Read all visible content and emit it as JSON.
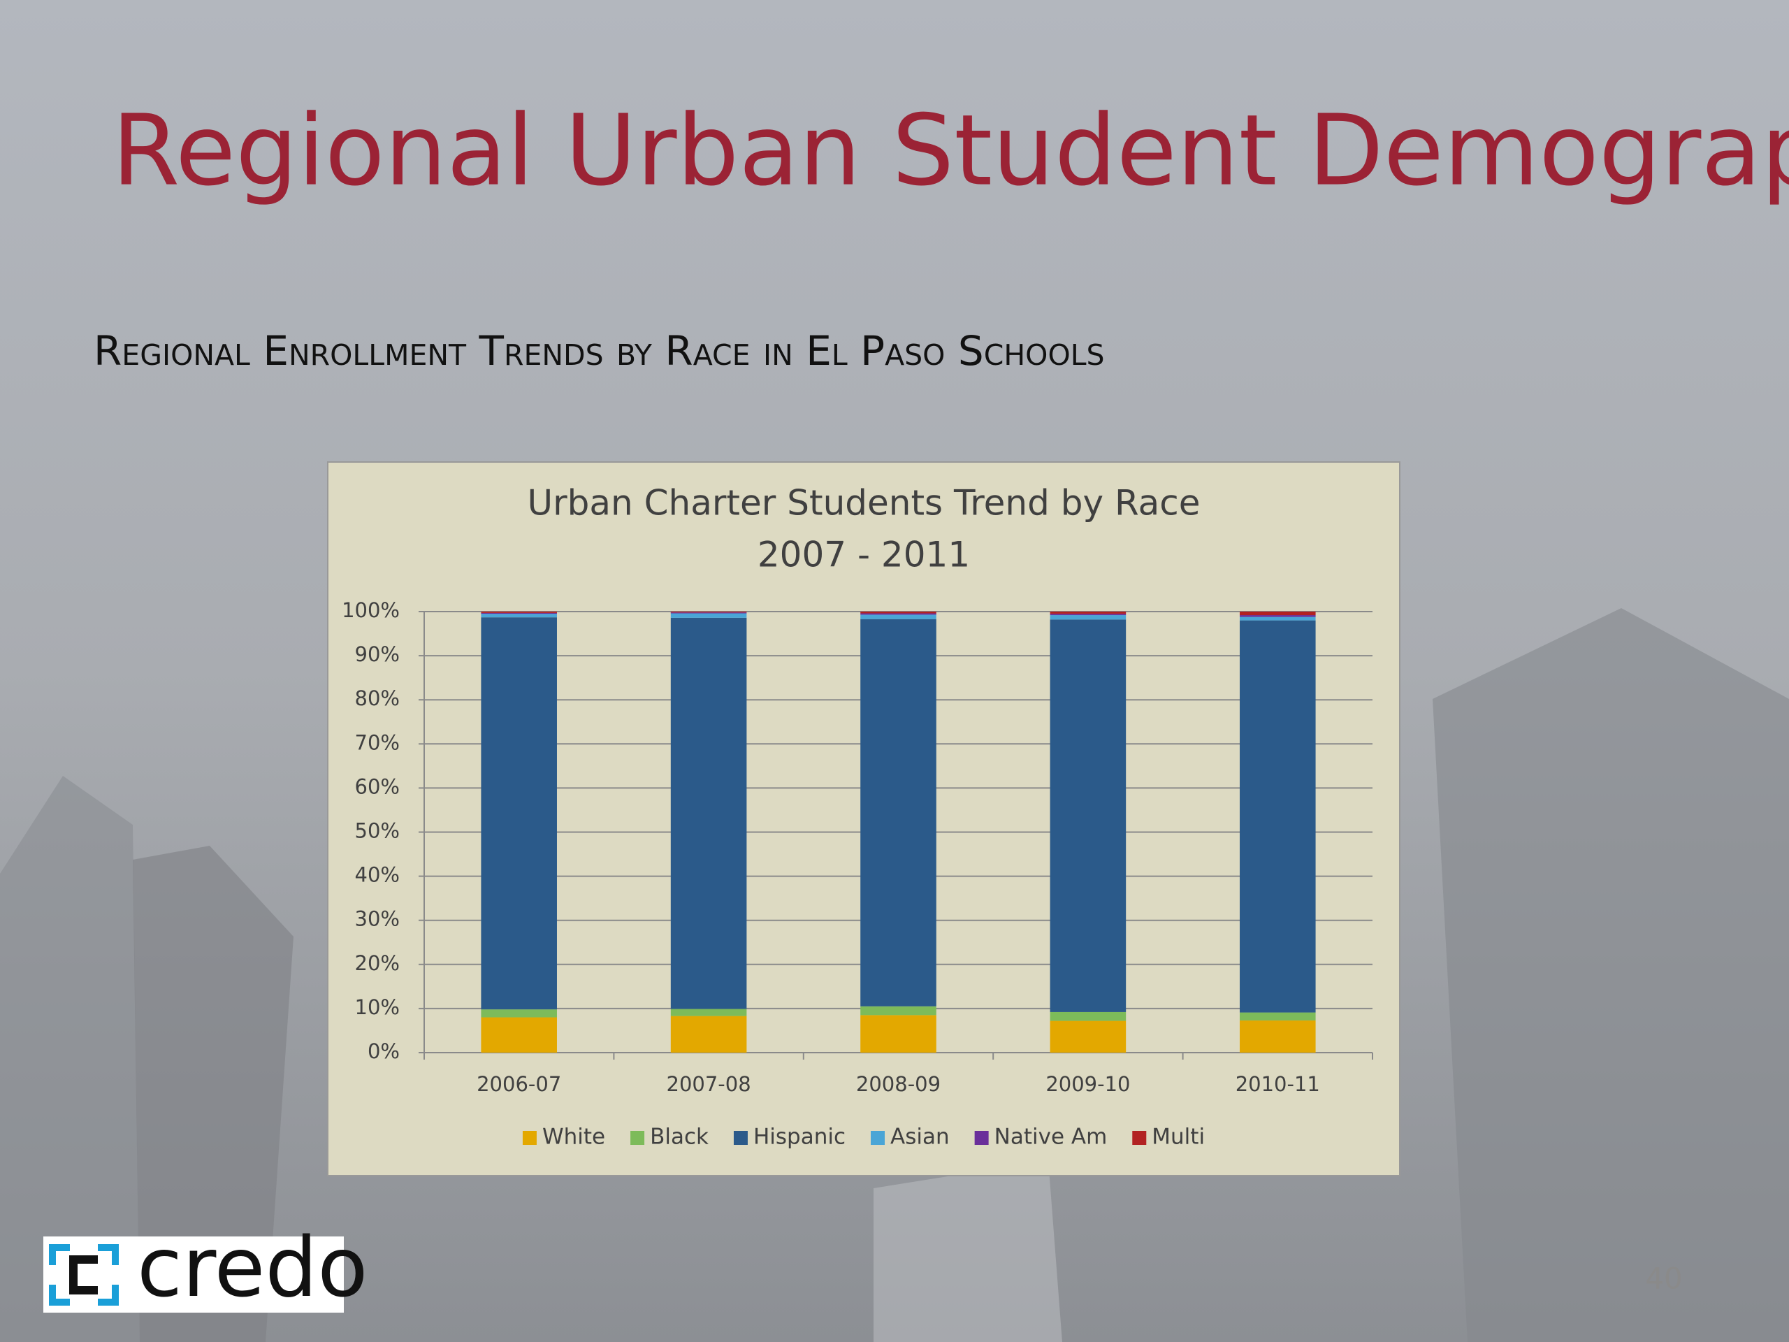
{
  "slide": {
    "title": "Regional Urban Student Demographics",
    "subtitle": "Regional Enrollment Trends by Race in El Paso Schools",
    "logo": "credo",
    "page_number": "40"
  },
  "chart_data": {
    "type": "stacked_bar",
    "title": "Urban Charter Students Trend by Race",
    "subtitle": "2007 - 2011",
    "categories": [
      "2006-07",
      "2007-08",
      "2008-09",
      "2009-10",
      "2010-11"
    ],
    "series": [
      {
        "name": "White",
        "color": "#e3a800",
        "values": [
          8.0,
          8.3,
          8.5,
          7.2,
          7.3
        ]
      },
      {
        "name": "Black",
        "color": "#7dbb5a",
        "values": [
          1.8,
          1.6,
          2.0,
          2.0,
          1.8
        ]
      },
      {
        "name": "Hispanic",
        "color": "#2b5a8a",
        "values": [
          88.9,
          88.7,
          87.8,
          89.0,
          88.9
        ]
      },
      {
        "name": "Asian",
        "color": "#4aa5d6",
        "values": [
          0.8,
          1.0,
          1.0,
          1.0,
          0.8
        ]
      },
      {
        "name": "Native Am",
        "color": "#6a2f9a",
        "values": [
          0.2,
          0.2,
          0.3,
          0.3,
          0.4
        ]
      },
      {
        "name": "Multi",
        "color": "#b22222",
        "values": [
          0.3,
          0.2,
          0.4,
          0.5,
          0.8
        ]
      }
    ],
    "ylim": [
      0,
      100
    ],
    "yticks": [
      {
        "value": 0,
        "label": "0%"
      },
      {
        "value": 10,
        "label": "10%"
      },
      {
        "value": 20,
        "label": "20%"
      },
      {
        "value": 30,
        "label": "30%"
      },
      {
        "value": 40,
        "label": "40%"
      },
      {
        "value": 50,
        "label": "50%"
      },
      {
        "value": 60,
        "label": "60%"
      },
      {
        "value": 70,
        "label": "70%"
      },
      {
        "value": 80,
        "label": "80%"
      },
      {
        "value": 90,
        "label": "90%"
      },
      {
        "value": 100,
        "label": "100%"
      }
    ],
    "grid": true,
    "legend": "bottom"
  }
}
